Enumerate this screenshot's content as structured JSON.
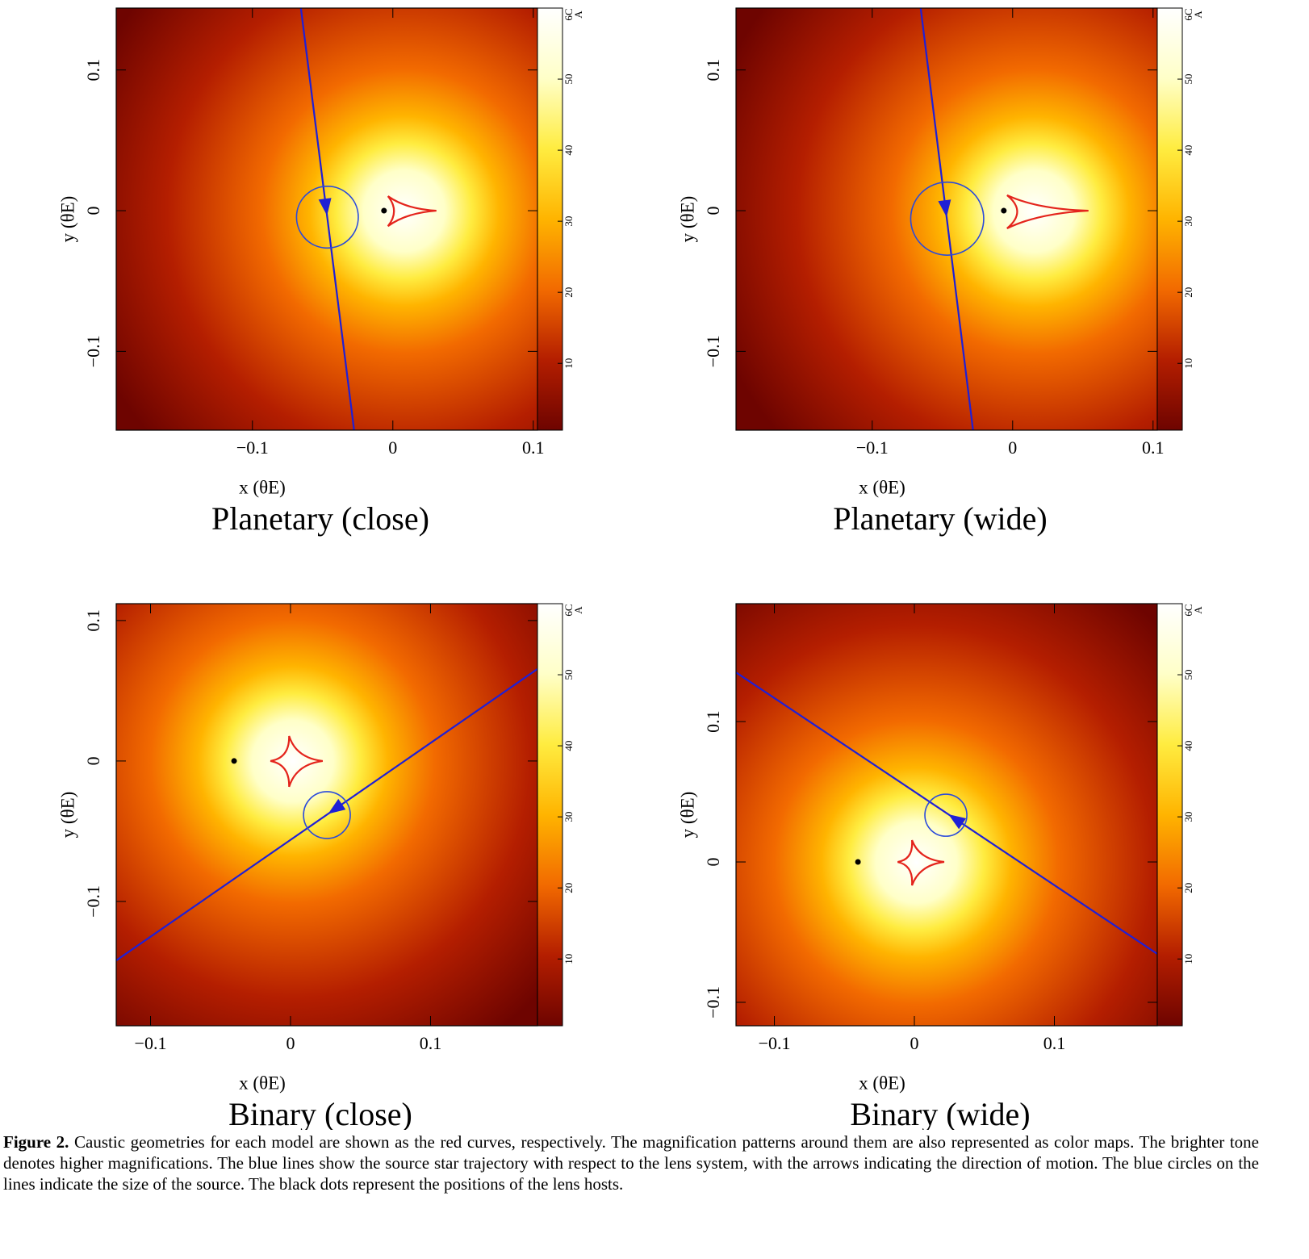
{
  "chart_data": [
    {
      "type": "magnification-map",
      "title": "Planetary (close)",
      "xlabel": "x (θE)",
      "ylabel": "y (θE)",
      "xlim": [
        -0.197,
        0.103
      ],
      "ylim": [
        -0.156,
        0.144
      ],
      "xticks": [
        {
          "value": -0.1,
          "label": "−0.1"
        },
        0,
        0.1
      ],
      "yticks": [
        {
          "value": -0.1,
          "label": "−0.1"
        },
        0,
        0.1
      ],
      "clim": [
        0.6,
        60
      ],
      "cticks": [
        10,
        20,
        30,
        40,
        50,
        {
          "value": 60,
          "label": "6C"
        }
      ],
      "colorbar_label": "A",
      "colormap": [
        "#6e0400",
        "#b41e00",
        "#f26a00",
        "#ffb400",
        "#ffec40",
        "#ffffc8",
        "#ffffff"
      ],
      "trajectory": {
        "x": [
          -0.0655,
          -0.0276
        ],
        "y": [
          0.144,
          -0.156
        ],
        "color": "#1f1fd6"
      },
      "source": {
        "x": -0.0466,
        "y": -0.0046,
        "r": 0.022,
        "color": "#2a4adb"
      },
      "host": {
        "x": -0.0063,
        "y": 0,
        "color": "#000000"
      },
      "caustic": {
        "x": [
          -0.0035,
          0.031,
          -0.0035
        ],
        "y": [
          0.0103,
          0,
          -0.011
        ],
        "color": "#e4241c"
      }
    },
    {
      "type": "magnification-map",
      "title": "Planetary (wide)",
      "xlabel": "x (θE)",
      "ylabel": "y (θE)",
      "xlim": [
        -0.197,
        0.103
      ],
      "ylim": [
        -0.156,
        0.144
      ],
      "xticks": [
        {
          "value": -0.1,
          "label": "−0.1"
        },
        0,
        0.1
      ],
      "yticks": [
        {
          "value": -0.1,
          "label": "−0.1"
        },
        0,
        0.1
      ],
      "clim": [
        0.6,
        60
      ],
      "cticks": [
        10,
        20,
        30,
        40,
        50,
        {
          "value": 60,
          "label": "6C"
        }
      ],
      "colorbar_label": "A",
      "colormap": [
        "#6e0400",
        "#b41e00",
        "#f26a00",
        "#ffb400",
        "#ffec40",
        "#ffffc8",
        "#ffffff"
      ],
      "trajectory": {
        "x": [
          -0.0655,
          -0.0282
        ],
        "y": [
          0.144,
          -0.156
        ],
        "color": "#1f1fd6"
      },
      "source": {
        "x": -0.0466,
        "y": -0.0057,
        "r": 0.026,
        "color": "#2a4adb"
      },
      "host": {
        "x": -0.0063,
        "y": 0,
        "color": "#000000"
      },
      "caustic": {
        "x": [
          -0.004,
          0.054,
          -0.004
        ],
        "y": [
          0.011,
          0,
          -0.0126
        ],
        "color": "#e4241c"
      }
    },
    {
      "type": "magnification-map",
      "title": "Binary (close)",
      "xlabel": "x (θE)",
      "ylabel": "y (θE)",
      "xlim": [
        -0.1245,
        0.1764
      ],
      "ylim": [
        -0.1885,
        0.112
      ],
      "xticks": [
        {
          "value": -0.1,
          "label": "−0.1"
        },
        0,
        0.1
      ],
      "yticks": [
        {
          "value": -0.1,
          "label": "−0.1"
        },
        0,
        0.1
      ],
      "clim": [
        0.6,
        60
      ],
      "cticks": [
        10,
        20,
        30,
        40,
        50,
        {
          "value": 60,
          "label": "6C"
        }
      ],
      "colorbar_label": "A",
      "colormap": [
        "#6e0400",
        "#b41e00",
        "#f26a00",
        "#ffb400",
        "#ffec40",
        "#ffffc8",
        "#ffffff"
      ],
      "trajectory": {
        "x": [
          0.1764,
          -0.1245
        ],
        "y": [
          0.0655,
          -0.142
        ],
        "color": "#1f1fd6"
      },
      "source": {
        "x": 0.026,
        "y": -0.0385,
        "r": 0.0167,
        "color": "#2a4adb"
      },
      "host": {
        "x": -0.0403,
        "y": 0,
        "color": "#000000"
      },
      "caustic": {
        "x": [
          -0.0144,
          -0.001,
          0.023,
          -0.001
        ],
        "y": [
          0,
          0.0178,
          0,
          -0.0184
        ],
        "color": "#e4241c"
      }
    },
    {
      "type": "magnification-map",
      "title": "Binary (wide)",
      "xlabel": "x (θE)",
      "ylabel": "y (θE)",
      "xlim": [
        -0.1274,
        0.1735
      ],
      "ylim": [
        -0.1167,
        0.184
      ],
      "xticks": [
        {
          "value": -0.1,
          "label": "−0.1"
        },
        0,
        0.1
      ],
      "yticks": [
        {
          "value": -0.1,
          "label": "−0.1"
        },
        0,
        0.1
      ],
      "clim": [
        0.6,
        60
      ],
      "cticks": [
        10,
        20,
        30,
        40,
        50,
        {
          "value": 60,
          "label": "6C"
        }
      ],
      "colorbar_label": "A",
      "colormap": [
        "#6e0400",
        "#b41e00",
        "#f26a00",
        "#ffb400",
        "#ffec40",
        "#ffffc8",
        "#ffffff"
      ],
      "trajectory": {
        "x": [
          0.1735,
          -0.1274
        ],
        "y": [
          -0.0655,
          0.135
        ],
        "color": "#1f1fd6"
      },
      "source": {
        "x": 0.0225,
        "y": 0.0333,
        "r": 0.015,
        "color": "#2a4adb"
      },
      "host": {
        "x": -0.0403,
        "y": 0,
        "color": "#000000"
      },
      "caustic": {
        "x": [
          -0.012,
          -0.0017,
          0.0213,
          -0.0017
        ],
        "y": [
          0,
          0.0155,
          0,
          -0.0167
        ],
        "color": "#e4241c"
      }
    }
  ],
  "caption": {
    "label": "Figure 2.",
    "text": "Caustic geometries for each model are shown as the red curves, respectively. The magnification patterns around them are also represented as color maps. The brighter tone denotes higher magnifications. The blue lines show the source star trajectory with respect to the lens system, with the arrows indicating the direction of motion. The blue circles on the lines indicate the size of the source. The black dots represent the positions of the lens hosts."
  }
}
